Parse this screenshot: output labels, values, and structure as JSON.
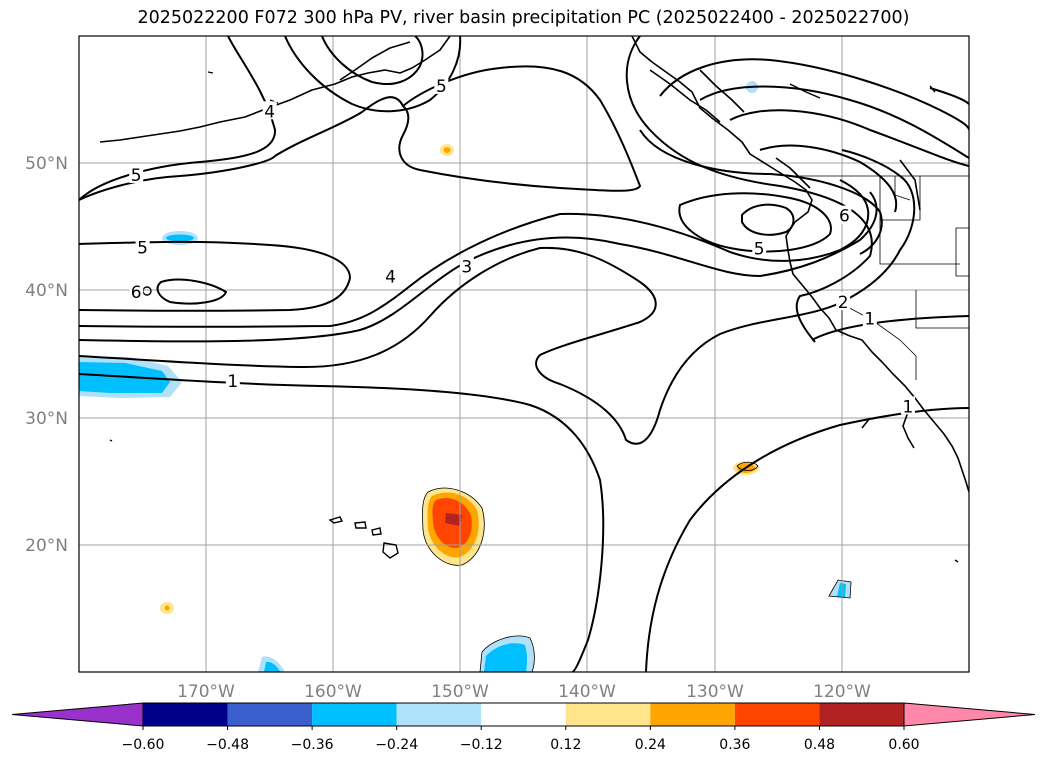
{
  "title": "2025022200 F072 300 hPa PV, river basin precipitation PC (2025022400 - 2025022700)",
  "map": {
    "projection": "cylindrical",
    "lon_range": [
      -180,
      -110
    ],
    "lat_range": [
      10,
      60
    ],
    "grid": true,
    "lat_labels": [
      "50°N",
      "40°N",
      "30°N",
      "20°N"
    ],
    "lon_labels": [
      "170°W",
      "160°W",
      "150°W",
      "140°W",
      "130°W",
      "120°W"
    ],
    "pv_contour_levels": [
      1,
      2,
      3,
      4,
      5,
      6
    ],
    "pv_contour_labels": [
      {
        "text": "5",
        "lon": -175.5,
        "lat": 49
      },
      {
        "text": "5",
        "lon": -175.0,
        "lat": 43.3
      },
      {
        "text": "6",
        "lon": -175.5,
        "lat": 39.8
      },
      {
        "text": "4",
        "lon": -165.0,
        "lat": 54.0
      },
      {
        "text": "5",
        "lon": -151.5,
        "lat": 56.0
      },
      {
        "text": "4",
        "lon": -155.5,
        "lat": 41.0
      },
      {
        "text": "3",
        "lon": -149.5,
        "lat": 41.8
      },
      {
        "text": "1",
        "lon": -167.9,
        "lat": 32.8
      },
      {
        "text": "5",
        "lon": -126.5,
        "lat": 43.2
      },
      {
        "text": "6",
        "lon": -119.8,
        "lat": 45.8
      },
      {
        "text": "2",
        "lon": -119.9,
        "lat": 39.0
      },
      {
        "text": "1",
        "lon": -117.8,
        "lat": 37.7
      },
      {
        "text": "1",
        "lon": -114.8,
        "lat": 30.8
      }
    ],
    "precip_pc_blobs": [
      {
        "sign": "positive",
        "max_level": 0.48,
        "lon": -150.8,
        "lat": 21.5
      },
      {
        "sign": "positive",
        "max_level": 0.36,
        "lon": -128.2,
        "lat": 26.1
      },
      {
        "sign": "positive",
        "max_level": 0.12,
        "lon": -150.9,
        "lat": 51.0
      },
      {
        "sign": "positive",
        "max_level": 0.12,
        "lon": -173.0,
        "lat": 15.0
      },
      {
        "sign": "negative",
        "max_level": -0.24,
        "lon": -176.0,
        "lat": 32.8
      },
      {
        "sign": "negative",
        "max_level": -0.24,
        "lon": -146.0,
        "lat": 11.5
      },
      {
        "sign": "negative",
        "max_level": -0.24,
        "lon": -173.0,
        "lat": 44.1
      },
      {
        "sign": "negative",
        "max_level": -0.24,
        "lon": -165.5,
        "lat": 10.6
      },
      {
        "sign": "negative",
        "max_level": -0.24,
        "lon": -120.0,
        "lat": 16.2
      },
      {
        "sign": "negative",
        "max_level": -0.12,
        "lon": -126.9,
        "lat": 56.0
      }
    ]
  },
  "colorbar": {
    "ticks": [
      "−0.60",
      "−0.48",
      "−0.36",
      "−0.24",
      "−0.12",
      "0.12",
      "0.24",
      "0.36",
      "0.48",
      "0.60"
    ],
    "colors": [
      "#9932cc",
      "#00008b",
      "#3a5fcd",
      "#00bfff",
      "#afe1fa",
      "#ffffff",
      "#ffe68c",
      "#ffa500",
      "#ff4500",
      "#b22222",
      "#ff88aa"
    ]
  }
}
